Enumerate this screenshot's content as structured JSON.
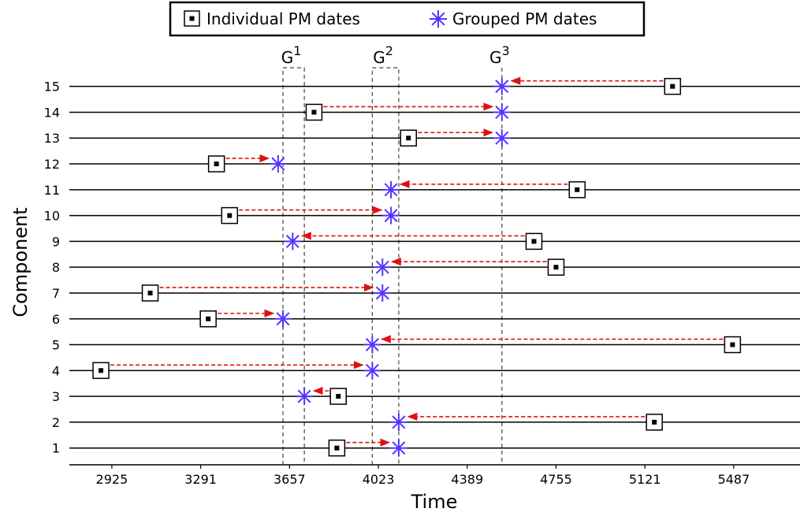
{
  "chart_data": {
    "type": "scatter",
    "xlabel": "Time",
    "ylabel": "Component",
    "xlim": [
      2750,
      5760
    ],
    "ylim": [
      0.35,
      15.6
    ],
    "x_ticks": [
      2925,
      3291,
      3657,
      4023,
      4389,
      4755,
      5121,
      5487
    ],
    "y_ticks": [
      1,
      2,
      3,
      4,
      5,
      6,
      7,
      8,
      9,
      10,
      11,
      12,
      13,
      14,
      15
    ],
    "legend": {
      "placement": "top-center",
      "entries": [
        "Individual PM dates",
        "Grouped PM dates"
      ]
    },
    "groups": [
      {
        "label": "G",
        "sup": "1",
        "x_start": 3630,
        "x_end": 3718
      },
      {
        "label": "G",
        "sup": "2",
        "x_start": 3998,
        "x_end": 4107
      },
      {
        "label": "G",
        "sup": "3",
        "x_start": 4532,
        "x_end": 4532
      }
    ],
    "series": [
      {
        "name": "Individual PM dates",
        "points": [
          {
            "component": 1,
            "x": 3852
          },
          {
            "component": 2,
            "x": 5160
          },
          {
            "component": 3,
            "x": 3858
          },
          {
            "component": 4,
            "x": 2880
          },
          {
            "component": 5,
            "x": 5482
          },
          {
            "component": 6,
            "x": 3322
          },
          {
            "component": 7,
            "x": 3083
          },
          {
            "component": 8,
            "x": 4755
          },
          {
            "component": 9,
            "x": 4664
          },
          {
            "component": 10,
            "x": 3410
          },
          {
            "component": 11,
            "x": 4842
          },
          {
            "component": 12,
            "x": 3356
          },
          {
            "component": 13,
            "x": 4147
          },
          {
            "component": 14,
            "x": 3758
          },
          {
            "component": 15,
            "x": 5235
          }
        ]
      },
      {
        "name": "Grouped PM dates",
        "points": [
          {
            "component": 1,
            "x": 4107
          },
          {
            "component": 2,
            "x": 4107
          },
          {
            "component": 3,
            "x": 3718
          },
          {
            "component": 4,
            "x": 3998
          },
          {
            "component": 5,
            "x": 3998
          },
          {
            "component": 6,
            "x": 3630
          },
          {
            "component": 7,
            "x": 4040
          },
          {
            "component": 8,
            "x": 4040
          },
          {
            "component": 9,
            "x": 3670
          },
          {
            "component": 10,
            "x": 4075
          },
          {
            "component": 11,
            "x": 4075
          },
          {
            "component": 12,
            "x": 3610
          },
          {
            "component": 13,
            "x": 4532
          },
          {
            "component": 14,
            "x": 4532
          },
          {
            "component": 15,
            "x": 4532
          }
        ]
      }
    ],
    "colors": {
      "individual": "#000000",
      "grouped": "#5533ff",
      "arrow": "#dd1111"
    }
  }
}
